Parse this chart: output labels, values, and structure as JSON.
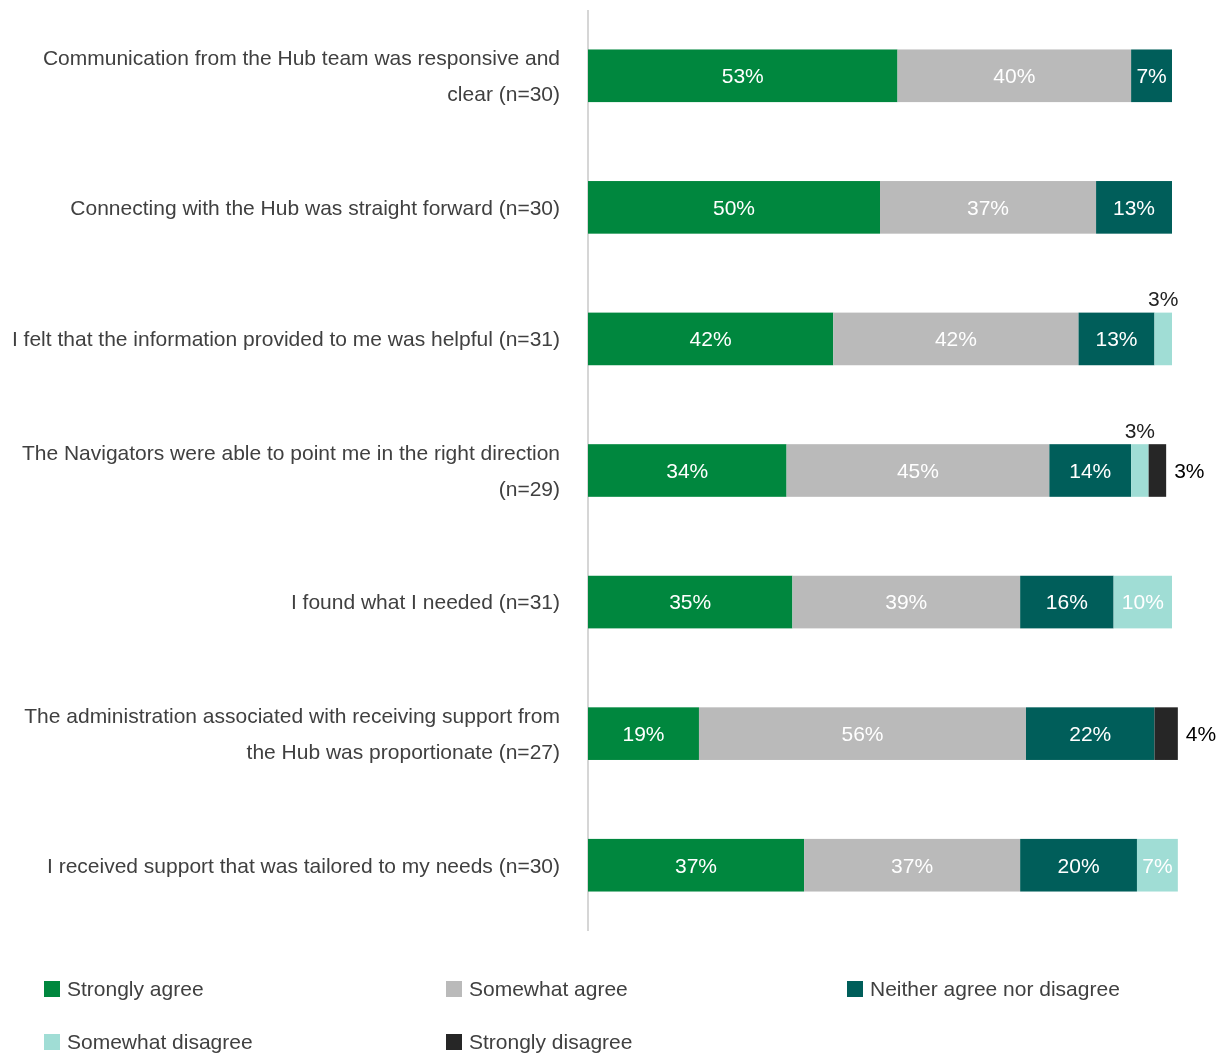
{
  "chart_data": {
    "type": "bar",
    "orientation": "horizontal",
    "stacked": true,
    "legend": "bottom",
    "tick_labels": "y",
    "categories": [
      "Communication from the Hub team was responsive and clear (n=30)",
      "Connecting with the Hub was straight forward (n=30)",
      "I felt that the information provided to me was helpful (n=31)",
      "The Navigators were able to point me in the right direction (n=29)",
      "I found what I needed (n=31)",
      "The administration associated with receiving support from the Hub was proportionate (n=27)",
      "I received support that was tailored to my needs (n=30)"
    ],
    "series": [
      {
        "name": "Strongly agree",
        "color": "#00873e",
        "values": [
          53,
          50,
          42,
          34,
          35,
          19,
          37
        ],
        "value_labels": [
          "53%",
          "50%",
          "42%",
          "34%",
          "35%",
          "19%",
          "37%"
        ]
      },
      {
        "name": "Somewhat agree",
        "color": "#bababa",
        "values": [
          40,
          37,
          42,
          45,
          39,
          56,
          37
        ],
        "value_labels": [
          "40%",
          "37%",
          "42%",
          "45%",
          "39%",
          "56%",
          "37%"
        ]
      },
      {
        "name": "Neither agree nor disagree",
        "color": "#005e5a",
        "values": [
          7,
          13,
          13,
          14,
          16,
          22,
          20
        ],
        "value_labels": [
          "7%",
          "13%",
          "13%",
          "14%",
          "16%",
          "22%",
          "20%"
        ]
      },
      {
        "name": "Somewhat disagree",
        "color": "#a0ddd5",
        "values": [
          null,
          null,
          3,
          3,
          10,
          null,
          7
        ],
        "value_labels": [
          null,
          null,
          "3%",
          "3%",
          "10%",
          null,
          "7%"
        ]
      },
      {
        "name": "Strongly disagree",
        "color": "#262626",
        "values": [
          null,
          null,
          null,
          3,
          null,
          4,
          null
        ],
        "value_labels": [
          null,
          null,
          null,
          "3%",
          null,
          "4%",
          null
        ]
      }
    ]
  }
}
